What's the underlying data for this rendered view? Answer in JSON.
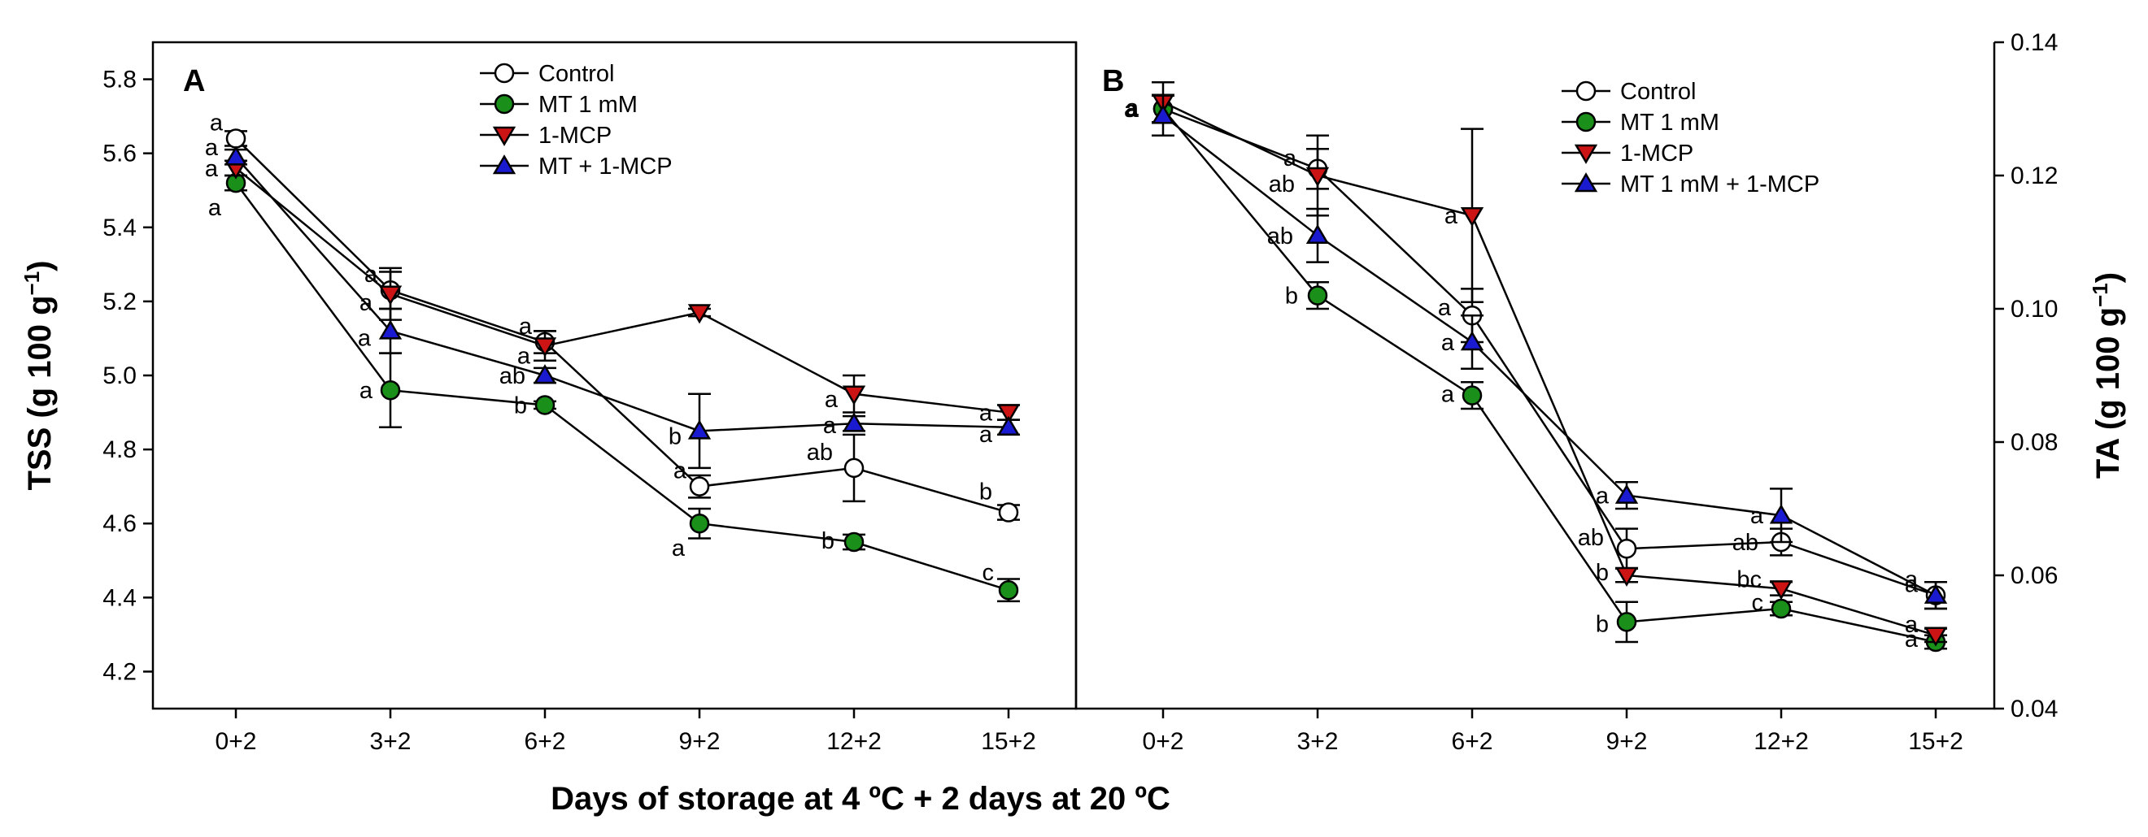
{
  "x_title": "Days of storage at 4 ºC + 2 days at 20 ºC",
  "colors": {
    "control": "#ffffff",
    "mt": "#1a8f1a",
    "mcp": "#cc1414",
    "combo": "#1a1ad0"
  },
  "chart_data": [
    {
      "panel": "A",
      "type": "line",
      "ylabel_main": "TSS (g 100 g",
      "ylabel_sup": "−1",
      "ylabel_close": ")",
      "ylim": [
        4.1,
        5.9
      ],
      "yticks": [
        4.2,
        4.4,
        4.6,
        4.8,
        5.0,
        5.2,
        5.4,
        5.6,
        5.8
      ],
      "ytick_labels": [
        "4.2",
        "4.4",
        "4.6",
        "4.8",
        "5.0",
        "5.2",
        "5.4",
        "5.6",
        "5.8"
      ],
      "categories": [
        "0+2",
        "3+2",
        "6+2",
        "9+2",
        "12+2",
        "15+2"
      ],
      "series": [
        {
          "key": "control",
          "name": "Control",
          "marker": "circle",
          "values": [
            5.64,
            5.23,
            5.09,
            4.7,
            4.75,
            4.63
          ],
          "errors": [
            0.02,
            0.05,
            0.03,
            0.03,
            0.09,
            0.02
          ],
          "letters": [
            "a",
            "a",
            "a",
            "a",
            "ab",
            "b"
          ]
        },
        {
          "key": "mt",
          "name": "MT 1 mM",
          "marker": "circle",
          "values": [
            5.52,
            4.96,
            4.92,
            4.6,
            4.55,
            4.42
          ],
          "errors": [
            0.02,
            0.1,
            0.01,
            0.04,
            0.02,
            0.03
          ],
          "letters": [
            "a",
            "a",
            "b",
            "a",
            "b",
            "c"
          ]
        },
        {
          "key": "mcp",
          "name": "1-MCP",
          "marker": "triangle-down",
          "values": [
            5.56,
            5.22,
            5.08,
            5.17,
            4.95,
            4.9
          ],
          "errors": [
            0.02,
            0.07,
            0.04,
            0.01,
            0.05,
            0.02
          ],
          "letters": [
            "a",
            "a",
            "a",
            "",
            "a",
            "a"
          ]
        },
        {
          "key": "combo",
          "name": "MT + 1-MCP",
          "marker": "triangle-up",
          "values": [
            5.59,
            5.12,
            5.0,
            4.85,
            4.87,
            4.86
          ],
          "errors": [
            0.02,
            0.06,
            0.02,
            0.1,
            0.02,
            0.02
          ],
          "letters": [
            "a",
            "a",
            "ab",
            "b",
            "a",
            "a"
          ]
        }
      ]
    },
    {
      "panel": "B",
      "type": "line",
      "ylabel_main": "TA (g 100 g",
      "ylabel_sup": "−1",
      "ylabel_close": ")",
      "ylim": [
        0.04,
        0.14
      ],
      "yticks": [
        0.04,
        0.06,
        0.08,
        0.1,
        0.12,
        0.14
      ],
      "ytick_labels": [
        "0.04",
        "0.06",
        "0.08",
        "0.10",
        "0.12",
        "0.14"
      ],
      "categories": [
        "0+2",
        "3+2",
        "6+2",
        "9+2",
        "12+2",
        "15+2"
      ],
      "series": [
        {
          "key": "control",
          "name": "Control",
          "marker": "circle",
          "values": [
            0.13,
            0.121,
            0.099,
            0.064,
            0.065,
            0.057
          ],
          "errors": [
            0.002,
            0.003,
            0.004,
            0.003,
            0.002,
            0.002
          ],
          "letters": [
            "a",
            "a",
            "a",
            "ab",
            "ab",
            "a"
          ]
        },
        {
          "key": "mt",
          "name": "MT 1 mM",
          "marker": "circle",
          "values": [
            0.13,
            0.102,
            0.087,
            0.053,
            0.055,
            0.05
          ],
          "errors": [
            0.002,
            0.002,
            0.002,
            0.003,
            0.001,
            0.001
          ],
          "letters": [
            "a",
            "b",
            "a",
            "b",
            "c",
            "a"
          ]
        },
        {
          "key": "mcp",
          "name": "1-MCP",
          "marker": "triangle-down",
          "values": [
            0.131,
            0.12,
            0.114,
            0.06,
            0.058,
            0.051
          ],
          "errors": [
            0.003,
            0.006,
            0.013,
            0.001,
            0.001,
            0.001
          ],
          "letters": [
            "",
            "ab",
            "a",
            "b",
            "bc",
            "a"
          ]
        },
        {
          "key": "combo",
          "name": "MT 1 mM + 1-MCP",
          "marker": "triangle-up",
          "values": [
            0.129,
            0.111,
            0.095,
            0.072,
            0.069,
            0.057
          ],
          "errors": [
            0.003,
            0.004,
            0.004,
            0.002,
            0.004,
            0.002
          ],
          "letters": [
            "a",
            "ab",
            "a",
            "a",
            "a",
            "a"
          ]
        }
      ]
    }
  ]
}
